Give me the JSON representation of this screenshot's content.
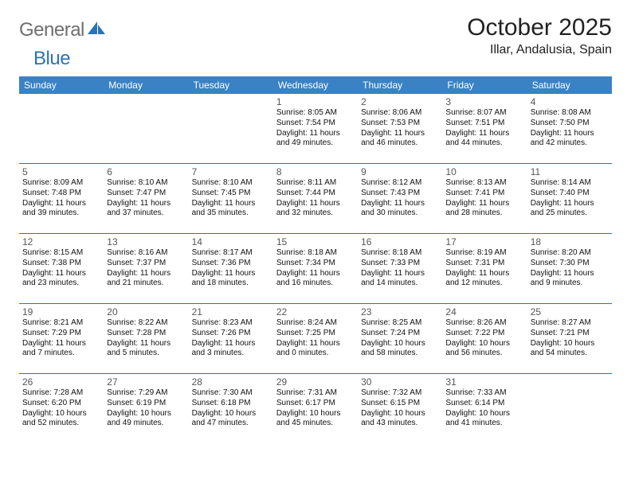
{
  "brand": {
    "part1": "General",
    "part2": "Blue"
  },
  "title": "October 2025",
  "location": "Illar, Andalusia, Spain",
  "colors": {
    "header_bg": "#3a82c4",
    "header_text": "#ffffff",
    "rule": "#2c72b8",
    "brand_gray": "#6f6f6f",
    "brand_blue": "#2c72b8"
  },
  "daysOfWeek": [
    "Sunday",
    "Monday",
    "Tuesday",
    "Wednesday",
    "Thursday",
    "Friday",
    "Saturday"
  ],
  "weeks": [
    [
      null,
      null,
      null,
      {
        "n": "1",
        "sr": "8:05 AM",
        "ss": "7:54 PM",
        "dl": "11 hours and 49 minutes."
      },
      {
        "n": "2",
        "sr": "8:06 AM",
        "ss": "7:53 PM",
        "dl": "11 hours and 46 minutes."
      },
      {
        "n": "3",
        "sr": "8:07 AM",
        "ss": "7:51 PM",
        "dl": "11 hours and 44 minutes."
      },
      {
        "n": "4",
        "sr": "8:08 AM",
        "ss": "7:50 PM",
        "dl": "11 hours and 42 minutes."
      }
    ],
    [
      {
        "n": "5",
        "sr": "8:09 AM",
        "ss": "7:48 PM",
        "dl": "11 hours and 39 minutes."
      },
      {
        "n": "6",
        "sr": "8:10 AM",
        "ss": "7:47 PM",
        "dl": "11 hours and 37 minutes."
      },
      {
        "n": "7",
        "sr": "8:10 AM",
        "ss": "7:45 PM",
        "dl": "11 hours and 35 minutes."
      },
      {
        "n": "8",
        "sr": "8:11 AM",
        "ss": "7:44 PM",
        "dl": "11 hours and 32 minutes."
      },
      {
        "n": "9",
        "sr": "8:12 AM",
        "ss": "7:43 PM",
        "dl": "11 hours and 30 minutes."
      },
      {
        "n": "10",
        "sr": "8:13 AM",
        "ss": "7:41 PM",
        "dl": "11 hours and 28 minutes."
      },
      {
        "n": "11",
        "sr": "8:14 AM",
        "ss": "7:40 PM",
        "dl": "11 hours and 25 minutes."
      }
    ],
    [
      {
        "n": "12",
        "sr": "8:15 AM",
        "ss": "7:38 PM",
        "dl": "11 hours and 23 minutes."
      },
      {
        "n": "13",
        "sr": "8:16 AM",
        "ss": "7:37 PM",
        "dl": "11 hours and 21 minutes."
      },
      {
        "n": "14",
        "sr": "8:17 AM",
        "ss": "7:36 PM",
        "dl": "11 hours and 18 minutes."
      },
      {
        "n": "15",
        "sr": "8:18 AM",
        "ss": "7:34 PM",
        "dl": "11 hours and 16 minutes."
      },
      {
        "n": "16",
        "sr": "8:18 AM",
        "ss": "7:33 PM",
        "dl": "11 hours and 14 minutes."
      },
      {
        "n": "17",
        "sr": "8:19 AM",
        "ss": "7:31 PM",
        "dl": "11 hours and 12 minutes."
      },
      {
        "n": "18",
        "sr": "8:20 AM",
        "ss": "7:30 PM",
        "dl": "11 hours and 9 minutes."
      }
    ],
    [
      {
        "n": "19",
        "sr": "8:21 AM",
        "ss": "7:29 PM",
        "dl": "11 hours and 7 minutes."
      },
      {
        "n": "20",
        "sr": "8:22 AM",
        "ss": "7:28 PM",
        "dl": "11 hours and 5 minutes."
      },
      {
        "n": "21",
        "sr": "8:23 AM",
        "ss": "7:26 PM",
        "dl": "11 hours and 3 minutes."
      },
      {
        "n": "22",
        "sr": "8:24 AM",
        "ss": "7:25 PM",
        "dl": "11 hours and 0 minutes."
      },
      {
        "n": "23",
        "sr": "8:25 AM",
        "ss": "7:24 PM",
        "dl": "10 hours and 58 minutes."
      },
      {
        "n": "24",
        "sr": "8:26 AM",
        "ss": "7:22 PM",
        "dl": "10 hours and 56 minutes."
      },
      {
        "n": "25",
        "sr": "8:27 AM",
        "ss": "7:21 PM",
        "dl": "10 hours and 54 minutes."
      }
    ],
    [
      {
        "n": "26",
        "sr": "7:28 AM",
        "ss": "6:20 PM",
        "dl": "10 hours and 52 minutes."
      },
      {
        "n": "27",
        "sr": "7:29 AM",
        "ss": "6:19 PM",
        "dl": "10 hours and 49 minutes."
      },
      {
        "n": "28",
        "sr": "7:30 AM",
        "ss": "6:18 PM",
        "dl": "10 hours and 47 minutes."
      },
      {
        "n": "29",
        "sr": "7:31 AM",
        "ss": "6:17 PM",
        "dl": "10 hours and 45 minutes."
      },
      {
        "n": "30",
        "sr": "7:32 AM",
        "ss": "6:15 PM",
        "dl": "10 hours and 43 minutes."
      },
      {
        "n": "31",
        "sr": "7:33 AM",
        "ss": "6:14 PM",
        "dl": "10 hours and 41 minutes."
      },
      null
    ]
  ],
  "labels": {
    "sunrise": "Sunrise:",
    "sunset": "Sunset:",
    "daylight": "Daylight:"
  }
}
